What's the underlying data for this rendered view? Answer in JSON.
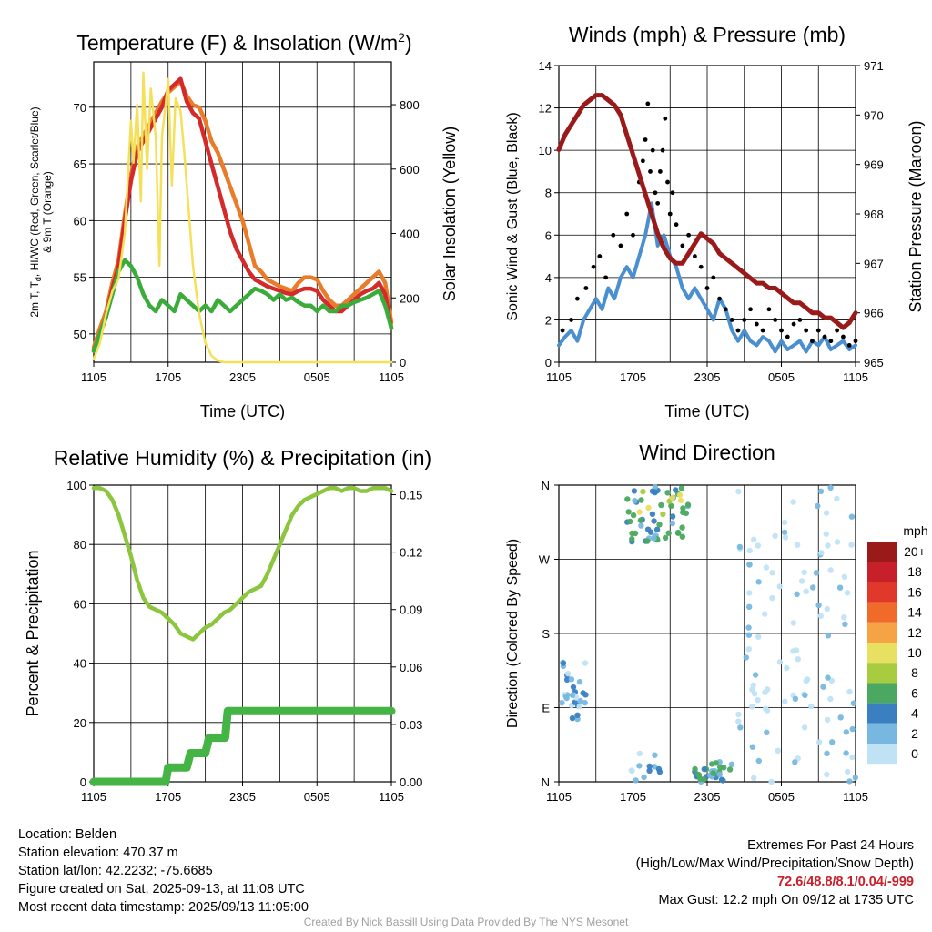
{
  "chart_data": [
    {
      "type": "line",
      "title": "Temperature (F) & Insolation (W/m",
      "title_sup": "2",
      "title_end": ")",
      "xlabel": "Time (UTC)",
      "ylabel_lines": [
        "2m T, T",
        "d",
        ", HI/WC (Red, Green, Scarlet/Blue)",
        "& 9m T (Orange)"
      ],
      "ylabel_right": "Solar Insolation (Yellow)",
      "x_ticks": [
        "1105",
        "1705",
        "2305",
        "0505",
        "1105"
      ],
      "ylim": [
        47.5,
        74
      ],
      "y_ticks": [
        50,
        55,
        60,
        65,
        70
      ],
      "ylim_right": [
        0,
        933
      ],
      "y_ticks_right": [
        0,
        200,
        400,
        600,
        800
      ],
      "series": [
        {
          "color": "#e87c2a",
          "x": [
            0,
            0.5,
            1,
            1.5,
            2,
            2.5,
            3,
            3.5,
            4,
            4.5,
            5,
            5.5,
            6,
            6.5,
            7,
            7.5,
            8,
            8.5,
            9,
            9.5,
            10,
            10.5,
            11,
            11.5,
            12,
            12.5,
            13,
            13.5,
            14,
            14.5,
            15,
            15.5,
            16,
            16.5,
            17,
            17.5,
            18,
            18.5,
            19,
            19.5,
            20,
            20.5,
            21,
            21.5,
            22,
            22.5,
            23,
            23.5,
            24
          ],
          "values": [
            48.8,
            50.5,
            52.0,
            54.5,
            56.5,
            60.5,
            64.0,
            66.5,
            67.5,
            68.5,
            69.5,
            70.5,
            71.3,
            71.8,
            72.3,
            71.0,
            70.2,
            70.0,
            68.8,
            67.0,
            66.0,
            64.5,
            63.0,
            61.5,
            60.0,
            58.0,
            56.0,
            55.5,
            54.8,
            54.5,
            54.2,
            54.0,
            53.8,
            54.5,
            55.0,
            55.0,
            54.8,
            53.8,
            53.0,
            52.5,
            52.5,
            53.0,
            53.5,
            54.0,
            54.5,
            55.0,
            55.5,
            54.5,
            51.0
          ]
        },
        {
          "color": "#d42a2a",
          "x": [
            0,
            0.5,
            1,
            1.5,
            2,
            2.5,
            3,
            3.5,
            4,
            4.5,
            5,
            5.5,
            6,
            6.5,
            7,
            7.5,
            8,
            8.5,
            9,
            9.5,
            10,
            10.5,
            11,
            11.5,
            12,
            12.5,
            13,
            13.5,
            14,
            14.5,
            15,
            15.5,
            16,
            16.5,
            17,
            17.5,
            18,
            18.5,
            19,
            19.5,
            20,
            20.5,
            21,
            21.5,
            22,
            22.5,
            23,
            23.5,
            24
          ],
          "values": [
            48.5,
            50.0,
            51.5,
            54.0,
            56.0,
            60.0,
            63.5,
            66.0,
            67.0,
            68.0,
            69.0,
            70.0,
            71.5,
            72.0,
            72.5,
            70.5,
            69.5,
            69.0,
            67.0,
            65.0,
            63.0,
            61.0,
            59.0,
            57.5,
            56.5,
            55.5,
            54.8,
            54.5,
            54.2,
            54.0,
            53.8,
            53.6,
            53.5,
            53.8,
            54.0,
            54.0,
            53.8,
            53.0,
            52.5,
            52.0,
            52.0,
            52.5,
            53.0,
            53.5,
            53.8,
            54.0,
            54.5,
            53.5,
            50.5
          ]
        },
        {
          "color": "#3aac3a",
          "x": [
            0,
            0.5,
            1,
            1.5,
            2,
            2.5,
            3,
            3.5,
            4,
            4.5,
            5,
            5.5,
            6,
            6.5,
            7,
            7.5,
            8,
            8.5,
            9,
            9.5,
            10,
            10.5,
            11,
            11.5,
            12,
            12.5,
            13,
            13.5,
            14,
            14.5,
            15,
            15.5,
            16,
            16.5,
            17,
            17.5,
            18,
            18.5,
            19,
            19.5,
            20,
            20.5,
            21,
            21.5,
            22,
            22.5,
            23,
            23.5,
            24
          ],
          "values": [
            48.5,
            50.0,
            51.5,
            53.5,
            55.5,
            56.5,
            56.0,
            55.0,
            53.5,
            52.5,
            52.0,
            53.0,
            52.5,
            52.0,
            53.5,
            53.0,
            52.5,
            52.0,
            52.5,
            52.0,
            53.0,
            52.5,
            52.0,
            52.5,
            53.0,
            53.5,
            54.0,
            53.8,
            53.5,
            53.0,
            53.5,
            53.0,
            53.2,
            52.8,
            52.5,
            52.5,
            52.0,
            52.5,
            52.0,
            52.0,
            52.5,
            52.5,
            52.8,
            53.0,
            53.2,
            53.5,
            53.8,
            52.5,
            50.5
          ]
        },
        {
          "color": "#f5e05a",
          "axis": "right",
          "x": [
            0,
            0.5,
            1,
            1.5,
            2,
            2.5,
            3,
            3.2,
            3.5,
            3.8,
            4,
            4.3,
            4.6,
            5,
            5.3,
            5.5,
            5.8,
            6,
            6.3,
            6.6,
            7,
            7.3,
            7.6,
            8,
            8.5,
            9,
            9.5,
            10,
            10.5,
            11,
            11.5,
            12,
            24
          ],
          "values": [
            10,
            60,
            150,
            220,
            260,
            400,
            750,
            620,
            800,
            500,
            900,
            600,
            850,
            700,
            300,
            700,
            800,
            880,
            550,
            820,
            780,
            650,
            500,
            300,
            150,
            60,
            20,
            5,
            0,
            0,
            0,
            0,
            0
          ]
        }
      ]
    },
    {
      "type": "scatter",
      "title": "Winds (mph) & Pressure (mb)",
      "xlabel": "Time (UTC)",
      "ylabel": "Sonic Wind & Gust (Blue, Black)",
      "ylabel_right": "Station Pressure (Maroon)",
      "x_ticks": [
        "1105",
        "1705",
        "2305",
        "0505",
        "1105"
      ],
      "ylim": [
        0,
        14
      ],
      "y_ticks": [
        0,
        2,
        4,
        6,
        8,
        10,
        12,
        14
      ],
      "ylim_right": [
        965,
        971
      ],
      "y_ticks_right": [
        965,
        966,
        967,
        968,
        969,
        970,
        971
      ],
      "series": [
        {
          "color": "#9a1a1a",
          "axis": "right",
          "x": [
            0,
            0.5,
            1,
            1.5,
            2,
            2.5,
            3,
            3.5,
            4,
            4.5,
            5,
            5.5,
            6,
            6.5,
            7,
            7.5,
            8,
            8.5,
            9,
            9.5,
            10,
            10.5,
            11,
            11.5,
            12,
            12.5,
            13,
            13.5,
            14,
            14.5,
            15,
            15.5,
            16,
            16.5,
            17,
            17.5,
            18,
            18.5,
            19,
            19.5,
            20,
            20.5,
            21,
            21.5,
            22,
            22.5,
            23,
            23.5,
            24
          ],
          "values": [
            969.3,
            969.6,
            969.8,
            970.0,
            970.2,
            970.3,
            970.4,
            970.4,
            970.3,
            970.2,
            970.0,
            969.6,
            969.2,
            968.8,
            968.4,
            968.0,
            967.6,
            967.3,
            967.1,
            967.0,
            967.0,
            967.2,
            967.4,
            967.6,
            967.5,
            967.4,
            967.2,
            967.1,
            967.0,
            966.9,
            966.8,
            966.7,
            966.6,
            966.6,
            966.5,
            966.5,
            966.4,
            966.3,
            966.2,
            966.2,
            966.1,
            966.0,
            966.0,
            965.9,
            965.9,
            965.8,
            965.7,
            965.8,
            966.0
          ]
        },
        {
          "color": "#4a8fd0",
          "x": [
            0,
            0.5,
            1,
            1.5,
            2,
            2.5,
            3,
            3.5,
            4,
            4.5,
            5,
            5.5,
            6,
            6.5,
            7,
            7.5,
            8,
            8.5,
            9,
            9.5,
            10,
            10.5,
            11,
            11.5,
            12,
            12.5,
            13,
            13.5,
            14,
            14.5,
            15,
            15.5,
            16,
            16.5,
            17,
            17.5,
            18,
            18.5,
            19,
            19.5,
            20,
            20.5,
            21,
            21.5,
            22,
            22.5,
            23,
            23.5,
            24
          ],
          "values": [
            0.8,
            1.2,
            1.5,
            1.0,
            2.0,
            2.5,
            3.0,
            2.5,
            3.5,
            3.0,
            4.0,
            4.5,
            4.0,
            5.0,
            6.0,
            7.5,
            5.5,
            6.0,
            5.0,
            4.5,
            3.5,
            3.0,
            3.5,
            3.0,
            2.5,
            2.0,
            3.0,
            2.5,
            1.5,
            1.0,
            1.5,
            1.0,
            0.8,
            1.2,
            1.0,
            0.5,
            1.0,
            0.6,
            0.8,
            1.0,
            0.5,
            1.0,
            0.8,
            1.2,
            0.6,
            0.8,
            1.0,
            0.6,
            0.8
          ]
        },
        {
          "color": "#000000",
          "x": [
            0.3,
            1.0,
            1.5,
            2.2,
            2.8,
            3.3,
            3.8,
            4.4,
            5.0,
            5.5,
            6.0,
            6.5,
            6.8,
            7.0,
            7.2,
            7.4,
            7.6,
            7.8,
            8.0,
            8.2,
            8.4,
            8.6,
            8.8,
            9.0,
            9.2,
            9.5,
            10.0,
            10.5,
            11.0,
            11.5,
            12.0,
            12.5,
            13.0,
            13.5,
            14.0,
            14.5,
            15.0,
            15.5,
            16.0,
            16.5,
            17.0,
            17.5,
            18.0,
            18.5,
            19.0,
            19.5,
            20.0,
            20.5,
            21.0,
            21.5,
            22.0,
            22.5,
            23.0,
            23.5,
            24.0
          ],
          "values": [
            1.5,
            2.0,
            3.0,
            3.5,
            4.5,
            5.0,
            4.0,
            6.0,
            5.5,
            7.0,
            6.0,
            8.5,
            9.5,
            10.5,
            12.2,
            9.0,
            10.0,
            8.0,
            7.5,
            9.0,
            10.0,
            11.5,
            8.5,
            7.0,
            8.0,
            6.5,
            5.5,
            6.0,
            5.0,
            4.5,
            3.5,
            4.0,
            3.0,
            2.5,
            2.0,
            1.5,
            2.0,
            2.5,
            1.8,
            1.5,
            2.5,
            2.0,
            1.5,
            1.2,
            1.8,
            2.0,
            1.5,
            1.0,
            1.5,
            1.2,
            1.0,
            1.5,
            1.2,
            0.8,
            1.0
          ]
        }
      ]
    },
    {
      "type": "line",
      "title": "Relative Humidity (%) & Precipitation (in)",
      "ylabel": "Percent & Precipitation",
      "x_ticks": [
        "1105",
        "1705",
        "2305",
        "0505",
        "1105"
      ],
      "ylim": [
        0,
        100
      ],
      "y_ticks": [
        0,
        20,
        40,
        60,
        80,
        100
      ],
      "ylim_right": [
        0,
        0.155
      ],
      "y_ticks_right": [
        "0.00",
        "0.03",
        "0.06",
        "0.09",
        "0.12",
        "0.15"
      ],
      "series": [
        {
          "color": "#8cc63f",
          "x": [
            0,
            0.5,
            1,
            1.5,
            2,
            2.5,
            3,
            3.5,
            4,
            4.5,
            5,
            5.5,
            6,
            6.5,
            7,
            7.5,
            8,
            8.5,
            9,
            9.5,
            10,
            10.5,
            11,
            11.5,
            12,
            12.5,
            13,
            13.5,
            14,
            14.5,
            15,
            15.5,
            16,
            16.5,
            17,
            17.5,
            18,
            18.5,
            19,
            19.5,
            20,
            20.5,
            21,
            21.5,
            22,
            22.5,
            23,
            23.5,
            24
          ],
          "values": [
            99,
            99,
            98,
            95,
            90,
            83,
            76,
            68,
            62,
            59,
            58,
            57,
            55,
            53,
            50,
            49,
            48,
            50,
            52,
            53,
            55,
            57,
            58,
            60,
            62,
            64,
            65,
            66,
            70,
            75,
            80,
            85,
            90,
            93,
            95,
            96,
            97,
            98,
            99,
            99,
            98,
            99,
            99,
            98,
            98,
            99,
            99,
            99,
            98
          ]
        },
        {
          "color": "#44b444",
          "axis": "right",
          "x": [
            0,
            5.8,
            6.0,
            7.5,
            7.8,
            9.0,
            9.3,
            10.6,
            10.8,
            24
          ],
          "values": [
            0.0,
            0.0,
            0.0075,
            0.0075,
            0.015,
            0.015,
            0.023,
            0.023,
            0.037,
            0.037
          ]
        }
      ]
    },
    {
      "type": "scatter",
      "title": "Wind Direction",
      "ylabel": "Direction (Colored By Speed)",
      "x_ticks": [
        "1105",
        "1705",
        "2305",
        "0505",
        "1105"
      ],
      "y_ticks": [
        "N",
        "E",
        "S",
        "W",
        "N"
      ],
      "legend_title": "mph",
      "legend_labels": [
        "20+",
        "18",
        "16",
        "14",
        "12",
        "10",
        "8",
        "6",
        "4",
        "2",
        "0"
      ],
      "legend_colors": [
        "#9a1a1a",
        "#c8202a",
        "#e0392b",
        "#f06a2a",
        "#f5a344",
        "#e8e060",
        "#a8cc40",
        "#4aa860",
        "#3a80c0",
        "#78b8e0",
        "#bfe3f5"
      ],
      "legend_placement": "right"
    }
  ],
  "info": {
    "location": "Location: Belden",
    "elevation": "Station elevation: 470.37 m",
    "latlon": "Station lat/lon: 42.2232; -75.6685",
    "created": "Figure created on Sat, 2025-09-13, at 11:08 UTC",
    "recent": "Most recent data timestamp: 2025/09/13 11:05:00"
  },
  "extremes": {
    "heading": "Extremes For Past 24 Hours",
    "subheading": "(High/Low/Max Wind/Precipitation/Snow Depth)",
    "values": "72.6/48.8/8.1/0.04/-999",
    "gust": "Max Gust: 12.2 mph On 09/12 at 1735 UTC"
  },
  "credit": "Created By Nick Bassill Using Data Provided By The NYS Mesonet"
}
